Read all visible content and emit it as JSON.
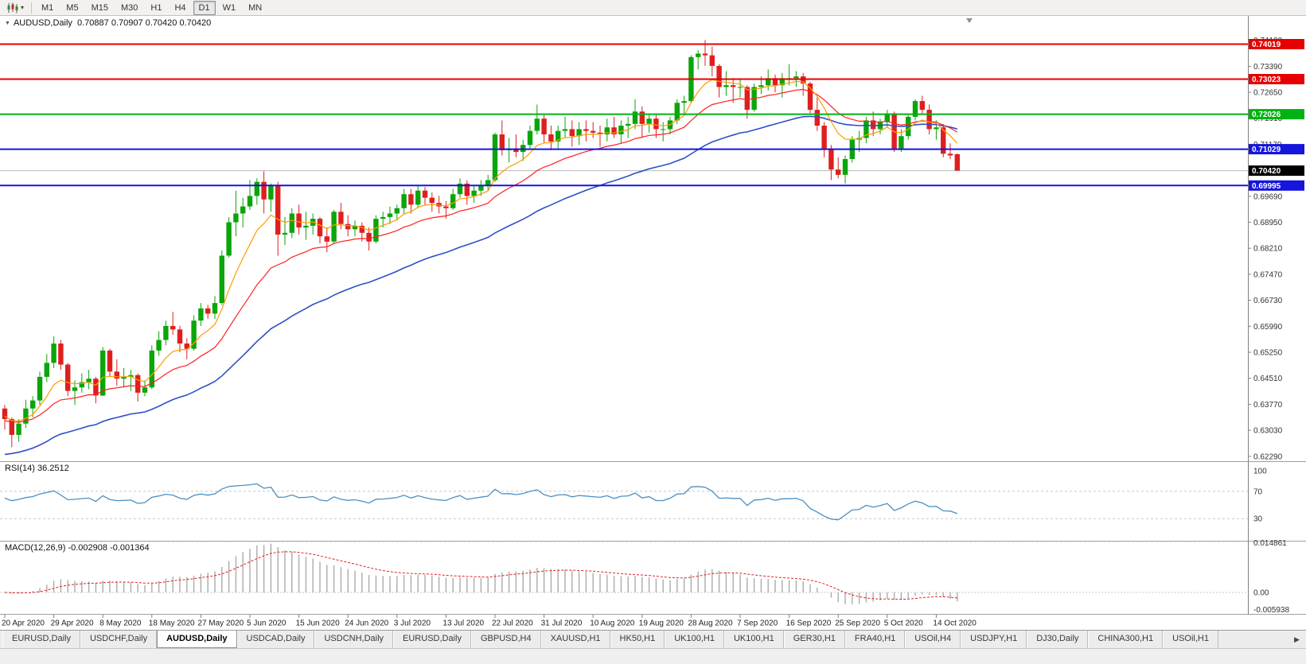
{
  "toolbar": {
    "timeframes": [
      "M1",
      "M5",
      "M15",
      "M30",
      "H1",
      "H4",
      "D1",
      "W1",
      "MN"
    ],
    "active": "D1"
  },
  "icons": {
    "chart_menu": "▼",
    "caret": "▾",
    "scroll_right": "▶"
  },
  "chart": {
    "main_label": "AUDUSD,Daily  0.70887 0.70907 0.70420 0.70420",
    "rsi_label": "RSI(14) 36.2512",
    "macd_label": "MACD(12,26,9) -0.002908 -0.001364"
  },
  "colors": {
    "up": "#0aa50a",
    "down": "#de1f1f",
    "ma_fast": "#ff9c00",
    "ma_mid": "#ff2020",
    "ma_slow": "#2d50c8",
    "rsi": "#4a90c4",
    "macd_hist": "#ababab",
    "macd_signal": "#e02020",
    "level_dash": "#c8c8c8",
    "axis_text": "#333333",
    "current_line": "#b8b8b8"
  },
  "chart_data": {
    "type": "candlestick",
    "symbol": "AUDUSD",
    "timeframe": "Daily",
    "last_bar": {
      "open": 0.70887,
      "high": 0.70907,
      "low": 0.7042,
      "close": 0.7042
    },
    "x_labels": [
      "20 Apr 2020",
      "29 Apr 2020",
      "8 May 2020",
      "18 May 2020",
      "27 May 2020",
      "5 Jun 2020",
      "15 Jun 2020",
      "24 Jun 2020",
      "3 Jul 2020",
      "13 Jul 2020",
      "22 Jul 2020",
      "31 Jul 2020",
      "10 Aug 2020",
      "19 Aug 2020",
      "28 Aug 2020",
      "7 Sep 2020",
      "16 Sep 2020",
      "25 Sep 2020",
      "5 Oct 2020",
      "14 Oct 2020"
    ],
    "bars_per_label": 7,
    "price_axis": {
      "min": 0.6215,
      "max": 0.748,
      "ticks": [
        "0.74130",
        "0.73390",
        "0.72650",
        "0.71910",
        "0.71170",
        "0.70430",
        "0.69690",
        "0.68950",
        "0.68210",
        "0.67470",
        "0.66730",
        "0.65990",
        "0.65250",
        "0.64510",
        "0.63770",
        "0.63030",
        "0.62290"
      ]
    },
    "hlines": [
      {
        "price": 0.74019,
        "label": "0.74019",
        "color": "#e60000",
        "width": 2
      },
      {
        "price": 0.73023,
        "label": "0.73023",
        "color": "#e60000",
        "width": 2
      },
      {
        "price": 0.72026,
        "label": "0.72026",
        "color": "#00b313",
        "width": 2
      },
      {
        "price": 0.71029,
        "label": "0.71029",
        "color": "#1515dd",
        "width": 2
      },
      {
        "price": 0.69995,
        "label": "0.69995",
        "color": "#1515dd",
        "width": 2
      }
    ],
    "current_price": {
      "value": 0.7042,
      "label": "0.70420",
      "color": "#000000"
    },
    "indicators": {
      "moving_averages": [
        {
          "name": "ma-fast",
          "period": 8,
          "color_key": "ma_fast"
        },
        {
          "name": "ma-mid",
          "period": 20,
          "color_key": "ma_mid"
        },
        {
          "name": "ma-slow",
          "period": 45,
          "color_key": "ma_slow"
        }
      ],
      "rsi": {
        "period": 14,
        "value": 36.2512,
        "levels": [
          70,
          30
        ],
        "axis_labels": [
          {
            "value": 100,
            "text": "100"
          },
          {
            "value": 70,
            "text": "70"
          },
          {
            "value": 30,
            "text": "30"
          }
        ]
      },
      "macd": {
        "fast": 12,
        "slow": 26,
        "signal": 9,
        "value": -0.002908,
        "signal_value": -0.001364,
        "axis_labels": [
          {
            "value": 0.014861,
            "text": "0.014861"
          },
          {
            "value": 0,
            "text": "0.00"
          },
          {
            "value": -0.005938,
            "text": "-0.005938"
          }
        ]
      }
    },
    "ohlc": [
      [
        0.6365,
        0.6375,
        0.6305,
        0.6335
      ],
      [
        0.6335,
        0.634,
        0.6255,
        0.629
      ],
      [
        0.629,
        0.6335,
        0.627,
        0.6322
      ],
      [
        0.6322,
        0.639,
        0.631,
        0.6365
      ],
      [
        0.6365,
        0.64,
        0.634,
        0.6388
      ],
      [
        0.6388,
        0.647,
        0.6375,
        0.6455
      ],
      [
        0.6455,
        0.652,
        0.644,
        0.6495
      ],
      [
        0.6495,
        0.657,
        0.648,
        0.655
      ],
      [
        0.655,
        0.656,
        0.6475,
        0.649
      ],
      [
        0.649,
        0.6495,
        0.64,
        0.6415
      ],
      [
        0.6415,
        0.6445,
        0.6375,
        0.6425
      ],
      [
        0.6425,
        0.6465,
        0.641,
        0.644
      ],
      [
        0.644,
        0.6475,
        0.642,
        0.645
      ],
      [
        0.645,
        0.6455,
        0.638,
        0.6402
      ],
      [
        0.6402,
        0.654,
        0.64,
        0.653
      ],
      [
        0.653,
        0.6535,
        0.6455,
        0.647
      ],
      [
        0.647,
        0.6505,
        0.643,
        0.645
      ],
      [
        0.645,
        0.648,
        0.6425,
        0.6455
      ],
      [
        0.6455,
        0.6475,
        0.6415,
        0.646
      ],
      [
        0.646,
        0.6465,
        0.6385,
        0.641
      ],
      [
        0.641,
        0.6445,
        0.64,
        0.6425
      ],
      [
        0.6425,
        0.6545,
        0.642,
        0.653
      ],
      [
        0.653,
        0.6585,
        0.6515,
        0.656
      ],
      [
        0.656,
        0.6615,
        0.6545,
        0.66
      ],
      [
        0.66,
        0.664,
        0.6575,
        0.659
      ],
      [
        0.659,
        0.66,
        0.6525,
        0.655
      ],
      [
        0.655,
        0.6565,
        0.6505,
        0.6535
      ],
      [
        0.6535,
        0.663,
        0.653,
        0.6615
      ],
      [
        0.6615,
        0.6665,
        0.66,
        0.665
      ],
      [
        0.665,
        0.666,
        0.662,
        0.6635
      ],
      [
        0.6635,
        0.6685,
        0.662,
        0.6665
      ],
      [
        0.6665,
        0.6815,
        0.666,
        0.68
      ],
      [
        0.68,
        0.691,
        0.6795,
        0.6895
      ],
      [
        0.6895,
        0.6985,
        0.6855,
        0.692
      ],
      [
        0.692,
        0.6965,
        0.688,
        0.694
      ],
      [
        0.694,
        0.7015,
        0.693,
        0.697
      ],
      [
        0.697,
        0.702,
        0.6945,
        0.701
      ],
      [
        0.701,
        0.704,
        0.692,
        0.696
      ],
      [
        0.696,
        0.7005,
        0.6925,
        0.7
      ],
      [
        0.7,
        0.701,
        0.68,
        0.686
      ],
      [
        0.686,
        0.691,
        0.683,
        0.6865
      ],
      [
        0.6865,
        0.6935,
        0.685,
        0.692
      ],
      [
        0.692,
        0.6945,
        0.686,
        0.688
      ],
      [
        0.688,
        0.6925,
        0.6845,
        0.6885
      ],
      [
        0.6885,
        0.692,
        0.686,
        0.6905
      ],
      [
        0.6905,
        0.691,
        0.6835,
        0.6855
      ],
      [
        0.6855,
        0.688,
        0.681,
        0.684
      ],
      [
        0.684,
        0.693,
        0.6835,
        0.6925
      ],
      [
        0.6925,
        0.695,
        0.6875,
        0.689
      ],
      [
        0.689,
        0.6915,
        0.6855,
        0.6875
      ],
      [
        0.6875,
        0.69,
        0.6855,
        0.6885
      ],
      [
        0.6885,
        0.6895,
        0.684,
        0.6865
      ],
      [
        0.6865,
        0.688,
        0.6815,
        0.684
      ],
      [
        0.684,
        0.6915,
        0.6835,
        0.6905
      ],
      [
        0.6905,
        0.6925,
        0.688,
        0.691
      ],
      [
        0.691,
        0.694,
        0.689,
        0.692
      ],
      [
        0.692,
        0.6945,
        0.69,
        0.6935
      ],
      [
        0.6935,
        0.699,
        0.692,
        0.6975
      ],
      [
        0.6975,
        0.699,
        0.692,
        0.6945
      ],
      [
        0.6945,
        0.7,
        0.6935,
        0.6985
      ],
      [
        0.6985,
        0.6995,
        0.6945,
        0.6965
      ],
      [
        0.6965,
        0.698,
        0.6925,
        0.695
      ],
      [
        0.695,
        0.697,
        0.692,
        0.694
      ],
      [
        0.694,
        0.6955,
        0.6905,
        0.6935
      ],
      [
        0.6935,
        0.699,
        0.693,
        0.6975
      ],
      [
        0.6975,
        0.702,
        0.6965,
        0.7005
      ],
      [
        0.7005,
        0.7015,
        0.6945,
        0.697
      ],
      [
        0.697,
        0.7,
        0.695,
        0.6985
      ],
      [
        0.6985,
        0.7015,
        0.697,
        0.7
      ],
      [
        0.7,
        0.703,
        0.6985,
        0.7015
      ],
      [
        0.7015,
        0.715,
        0.701,
        0.7145
      ],
      [
        0.7145,
        0.7185,
        0.7085,
        0.71
      ],
      [
        0.71,
        0.7135,
        0.7065,
        0.7105
      ],
      [
        0.7105,
        0.7145,
        0.708,
        0.7095
      ],
      [
        0.7095,
        0.713,
        0.707,
        0.7115
      ],
      [
        0.7115,
        0.717,
        0.7105,
        0.7155
      ],
      [
        0.7155,
        0.723,
        0.7145,
        0.719
      ],
      [
        0.719,
        0.72,
        0.712,
        0.7145
      ],
      [
        0.7145,
        0.717,
        0.71,
        0.7125
      ],
      [
        0.7125,
        0.717,
        0.7105,
        0.7155
      ],
      [
        0.7155,
        0.7195,
        0.7135,
        0.716
      ],
      [
        0.716,
        0.7185,
        0.711,
        0.714
      ],
      [
        0.714,
        0.718,
        0.7115,
        0.716
      ],
      [
        0.716,
        0.7185,
        0.7125,
        0.7155
      ],
      [
        0.7155,
        0.718,
        0.7135,
        0.715
      ],
      [
        0.715,
        0.717,
        0.711,
        0.7145
      ],
      [
        0.7145,
        0.719,
        0.7125,
        0.7165
      ],
      [
        0.7165,
        0.7195,
        0.7135,
        0.7145
      ],
      [
        0.7145,
        0.7185,
        0.712,
        0.717
      ],
      [
        0.717,
        0.7195,
        0.7135,
        0.7175
      ],
      [
        0.7175,
        0.7245,
        0.716,
        0.721
      ],
      [
        0.721,
        0.7225,
        0.7135,
        0.7175
      ],
      [
        0.7175,
        0.72,
        0.715,
        0.719
      ],
      [
        0.719,
        0.72,
        0.7135,
        0.716
      ],
      [
        0.716,
        0.718,
        0.7125,
        0.716
      ],
      [
        0.716,
        0.7195,
        0.7145,
        0.7185
      ],
      [
        0.7185,
        0.7245,
        0.7175,
        0.7235
      ],
      [
        0.7235,
        0.7255,
        0.7205,
        0.724
      ],
      [
        0.724,
        0.737,
        0.7235,
        0.7365
      ],
      [
        0.7365,
        0.7385,
        0.733,
        0.7375
      ],
      [
        0.7375,
        0.7414,
        0.734,
        0.737
      ],
      [
        0.737,
        0.7395,
        0.731,
        0.734
      ],
      [
        0.734,
        0.7345,
        0.725,
        0.728
      ],
      [
        0.728,
        0.7325,
        0.7255,
        0.7285
      ],
      [
        0.7285,
        0.7305,
        0.7235,
        0.728
      ],
      [
        0.728,
        0.73,
        0.725,
        0.728
      ],
      [
        0.728,
        0.7285,
        0.719,
        0.7215
      ],
      [
        0.7215,
        0.729,
        0.721,
        0.728
      ],
      [
        0.728,
        0.731,
        0.726,
        0.7285
      ],
      [
        0.7285,
        0.733,
        0.727,
        0.7305
      ],
      [
        0.7305,
        0.7315,
        0.7265,
        0.7285
      ],
      [
        0.7285,
        0.732,
        0.725,
        0.7305
      ],
      [
        0.7305,
        0.7345,
        0.7285,
        0.7305
      ],
      [
        0.7305,
        0.7325,
        0.728,
        0.731
      ],
      [
        0.731,
        0.732,
        0.7255,
        0.729
      ],
      [
        0.729,
        0.7295,
        0.7205,
        0.7215
      ],
      [
        0.7215,
        0.725,
        0.7155,
        0.717
      ],
      [
        0.717,
        0.718,
        0.708,
        0.7105
      ],
      [
        0.7105,
        0.7115,
        0.7015,
        0.7045
      ],
      [
        0.7045,
        0.708,
        0.702,
        0.703
      ],
      [
        0.703,
        0.7085,
        0.7005,
        0.7075
      ],
      [
        0.7075,
        0.714,
        0.7065,
        0.713
      ],
      [
        0.713,
        0.7155,
        0.7095,
        0.7135
      ],
      [
        0.7135,
        0.7195,
        0.712,
        0.7185
      ],
      [
        0.7185,
        0.721,
        0.714,
        0.716
      ],
      [
        0.716,
        0.719,
        0.7145,
        0.718
      ],
      [
        0.718,
        0.7215,
        0.7165,
        0.7205
      ],
      [
        0.7205,
        0.721,
        0.7095,
        0.7105
      ],
      [
        0.7105,
        0.716,
        0.7095,
        0.714
      ],
      [
        0.714,
        0.72,
        0.713,
        0.7195
      ],
      [
        0.7195,
        0.7245,
        0.7185,
        0.724
      ],
      [
        0.724,
        0.7255,
        0.7205,
        0.7215
      ],
      [
        0.7215,
        0.723,
        0.7145,
        0.716
      ],
      [
        0.716,
        0.7185,
        0.713,
        0.7165
      ],
      [
        0.7165,
        0.7175,
        0.708,
        0.709
      ],
      [
        0.709,
        0.712,
        0.7075,
        0.7085
      ],
      [
        0.70887,
        0.70907,
        0.7042,
        0.7042
      ]
    ]
  },
  "bottom_tabs": {
    "items": [
      "EURUSD,Daily",
      "USDCHF,Daily",
      "AUDUSD,Daily",
      "USDCAD,Daily",
      "USDCNH,Daily",
      "EURUSD,Daily",
      "GBPUSD,H4",
      "XAUUSD,H1",
      "HK50,H1",
      "UK100,H1",
      "UK100,H1",
      "GER30,H1",
      "FRA40,H1",
      "USOil,H4",
      "USDJPY,H1",
      "DJ30,Daily",
      "CHINA300,H1",
      "USOil,H1"
    ],
    "active_index": 2
  }
}
